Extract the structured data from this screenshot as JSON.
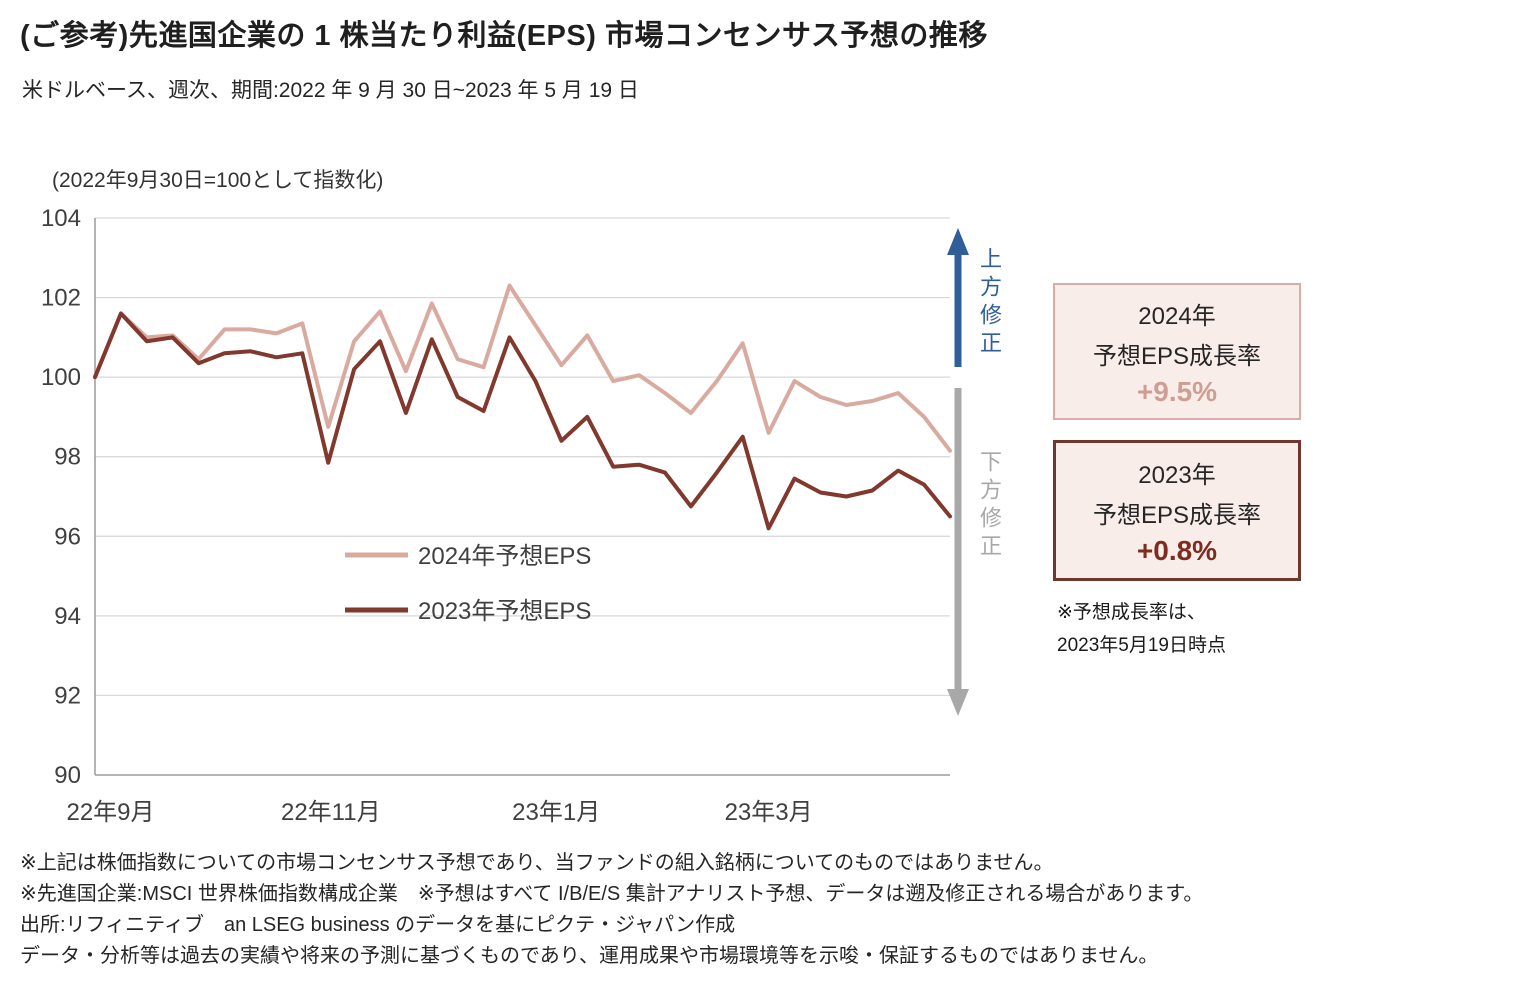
{
  "header": {
    "title": "(ご参考)先進国企業の 1 株当たり利益(EPS) 市場コンセンサス予想の推移",
    "subtitle": "米ドルベース、週次、期間:2022 年 9 月 30 日~2023 年 5 月 19 日"
  },
  "chart_note": "(2022年9月30日=100として指数化)",
  "annotations": {
    "up_label": "上方修正",
    "down_label": "下方修正",
    "up_color": "#2f5e99",
    "down_color": "#a8a8a8"
  },
  "boxes": [
    {
      "year_line": "2024年",
      "label_line": "予想EPS成長率",
      "value": "+9.5%",
      "border_color": "#dcaca2",
      "value_color": "#cf9e93",
      "bg": "#f9edea"
    },
    {
      "year_line": "2023年",
      "label_line": "予想EPS成長率",
      "value": "+0.8%",
      "border_color": "#6e382e",
      "value_color": "#7c2d20",
      "bg": "#f9edea"
    }
  ],
  "boxes_note": [
    "※予想成長率は、",
    "2023年5月19日時点"
  ],
  "footnotes": [
    "※上記は株価指数についての市場コンセンサス予想であり、当ファンドの組入銘柄についてのものではありません。",
    "※先進国企業:MSCI 世界株価指数構成企業　※予想はすべて I/B/E/S 集計アナリスト予想、データは遡及修正される場合があります。",
    "出所:リフィニティブ　an LSEG business のデータを基にピクテ・ジャパン作成",
    "データ・分析等は過去の実績や将来の予測に基づくものであり、運用成果や市場環境等を示唆・保証するものではありません。"
  ],
  "chart_data": {
    "type": "line",
    "title": "先進国企業の1株当たり利益(EPS) 市場コンセンサス予想の推移",
    "x_description": "週次、2022年9月30日~2023年5月19日 (2022年9月30日=100として指数化)",
    "x_tick_labels": [
      "22年9月",
      "22年11月",
      "23年1月",
      "23年3月"
    ],
    "x_tick_positions_weeks": [
      0.6,
      9.1,
      17.8,
      26
    ],
    "ylim": [
      90,
      104
    ],
    "yticks": [
      90,
      92,
      94,
      96,
      98,
      100,
      102,
      104
    ],
    "grid": "horizontal",
    "legend_position": "inside-lower-left",
    "series": [
      {
        "name": "2024年予想EPS",
        "color": "#d9aa9f",
        "values": [
          100.0,
          101.6,
          101.0,
          101.05,
          100.45,
          101.2,
          101.2,
          101.1,
          101.35,
          98.75,
          100.9,
          101.65,
          100.15,
          101.85,
          100.45,
          100.25,
          102.3,
          101.3,
          100.3,
          101.05,
          99.9,
          100.05,
          99.6,
          99.1,
          99.9,
          100.85,
          98.6,
          99.9,
          99.5,
          99.3,
          99.4,
          99.6,
          99.0,
          98.15
        ]
      },
      {
        "name": "2023年予想EPS",
        "color": "#82392d",
        "values": [
          100.0,
          101.6,
          100.9,
          101.0,
          100.35,
          100.6,
          100.65,
          100.5,
          100.6,
          97.85,
          100.2,
          100.9,
          99.1,
          100.95,
          99.5,
          99.15,
          101.0,
          99.9,
          98.4,
          99.0,
          97.75,
          97.8,
          97.6,
          96.75,
          97.6,
          98.5,
          96.2,
          97.45,
          97.1,
          97.0,
          97.15,
          97.65,
          97.3,
          96.5
        ]
      }
    ]
  }
}
